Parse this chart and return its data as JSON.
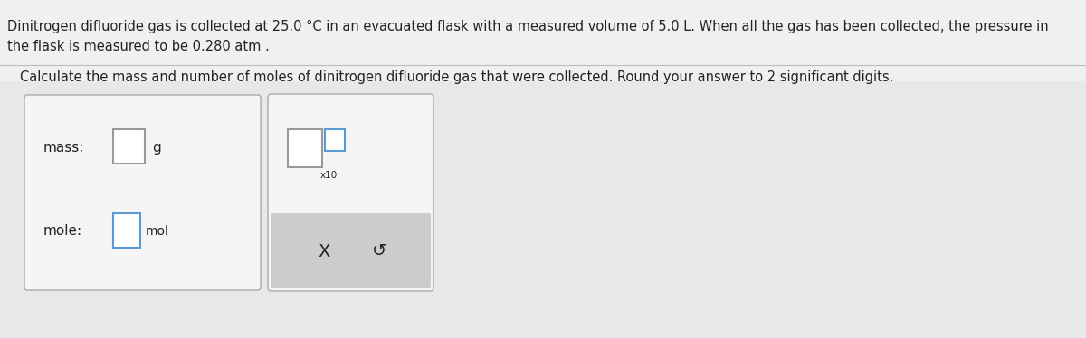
{
  "bg_color": "#e8e8e8",
  "title_line1": "Dinitrogen difluoride gas is collected at 25.0 °C in an evacuated flask with a measured volume of 5.0 L. When all the gas has been collected, the pressure in",
  "title_line2": "the flask is measured to be 0.280 atm .",
  "subtitle": "Calculate the mass and number of moles of dinitrogen difluoride gas that were collected. Round your answer to 2 significant digits.",
  "mass_label": "mass:",
  "mole_label": "mole:",
  "g_label": "g",
  "mol_label": "mol",
  "x10_label": "x10",
  "x_label": "X",
  "s_label": "↺",
  "box_bg": "#f5f5f5",
  "input_box_color": "#ffffff",
  "input_box_border_blue": "#5b9bd5",
  "input_box_border_gray": "#999999",
  "button_bg": "#cccccc",
  "text_color": "#222222",
  "font_size_body": 10.5,
  "font_size_labels": 11,
  "font_size_small": 7.5
}
